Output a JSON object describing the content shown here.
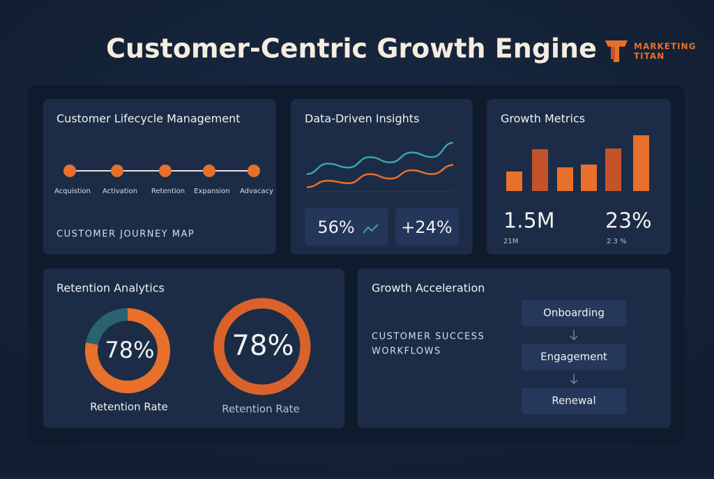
{
  "header": {
    "title": "Customer-Centric Growth Engine",
    "brand": [
      "MARKETING",
      "TITAN"
    ]
  },
  "lifecycle": {
    "title": "Customer Lifecycle Management",
    "stages": [
      "Acquistion",
      "Activation",
      "Retention",
      "Expansion",
      "Advacacy"
    ],
    "footer": "CUSTOMER JOURNEY MAP"
  },
  "insights": {
    "title": "Data-Driven Insights",
    "ylim": [
      0,
      80
    ],
    "series": [
      {
        "color": "#3aa6a8",
        "values": [
          27,
          43,
          37,
          53,
          45,
          60,
          53,
          75
        ]
      },
      {
        "color": "#e8702a",
        "values": [
          7,
          17,
          13,
          27,
          20,
          33,
          27,
          41
        ]
      }
    ],
    "stats": [
      "56%",
      "+24%"
    ]
  },
  "growth": {
    "title": "Growth Metrics",
    "ylim": [
      0,
      100
    ],
    "bars": [
      28,
      60,
      34,
      38,
      61,
      80
    ],
    "bar_colors": [
      "#e8702a",
      "#c4532a",
      "#e8702a",
      "#e8702a",
      "#c4532a",
      "#e8702a"
    ],
    "metrics": [
      {
        "value": "1.5M",
        "sub": "21M"
      },
      {
        "value": "23%",
        "sub": "2.3 %"
      }
    ]
  },
  "retention": {
    "title": "Retention Analytics",
    "donuts": [
      {
        "value": 78,
        "label": "78%",
        "caption": "Retention Rate"
      },
      {
        "label": "78%",
        "caption": "Retention Rate"
      }
    ]
  },
  "acceleration": {
    "title": "Growth Acceleration",
    "subtitle": [
      "CUSTOMER SUCCESS",
      "WORKFLOWS"
    ],
    "steps": [
      "Onboarding",
      "Engagement",
      "Renewal"
    ]
  }
}
